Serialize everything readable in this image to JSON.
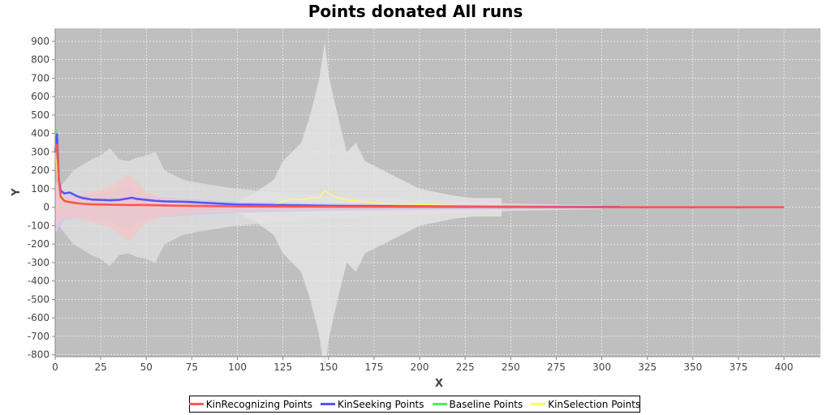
{
  "chart_data": {
    "type": "line",
    "title": "Points donated All runs",
    "xlabel": "X",
    "ylabel": "Y",
    "xlim": [
      0,
      420
    ],
    "ylim": [
      -810,
      970
    ],
    "x_ticks": [
      0,
      25,
      50,
      75,
      100,
      125,
      150,
      175,
      200,
      225,
      250,
      275,
      300,
      325,
      350,
      375,
      400
    ],
    "y_ticks": [
      -800,
      -700,
      -600,
      -500,
      -400,
      -300,
      -200,
      -100,
      0,
      100,
      200,
      300,
      400,
      500,
      600,
      700,
      800,
      900
    ],
    "grid": true,
    "legend_position": "bottom",
    "plot_background": "#bfbfbf",
    "series": [
      {
        "name": "KinRecognizing Points",
        "color": "#ff5555",
        "band_color": "#f4c6c6",
        "x": [
          0,
          1,
          2,
          3,
          5,
          8,
          12,
          16,
          20,
          25,
          30,
          35,
          40,
          45,
          50,
          60,
          70,
          80,
          90,
          100,
          120,
          150,
          200,
          250,
          300,
          350,
          400
        ],
        "y": [
          300,
          340,
          150,
          60,
          35,
          28,
          22,
          18,
          16,
          15,
          14,
          13,
          12,
          12,
          12,
          10,
          8,
          7,
          6,
          5,
          4,
          3,
          2,
          1,
          0,
          0,
          0
        ],
        "band": [
          [
            0,
            150
          ],
          [
            2,
            80
          ],
          [
            5,
            60
          ],
          [
            10,
            60
          ],
          [
            20,
            80
          ],
          [
            30,
            110
          ],
          [
            36,
            150
          ],
          [
            40,
            180
          ],
          [
            45,
            140
          ],
          [
            50,
            80
          ],
          [
            60,
            50
          ],
          [
            80,
            30
          ],
          [
            100,
            20
          ],
          [
            150,
            10
          ],
          [
            200,
            5
          ],
          [
            400,
            3
          ]
        ]
      },
      {
        "name": "KinSeeking Points",
        "color": "#5555ff",
        "band_color": "#c8c8f0",
        "x": [
          0,
          1,
          2,
          3,
          5,
          8,
          10,
          12,
          15,
          20,
          25,
          30,
          35,
          40,
          42,
          45,
          50,
          55,
          60,
          70,
          75,
          80,
          90,
          100,
          150,
          200,
          250,
          300,
          310
        ],
        "y": [
          300,
          395,
          150,
          90,
          75,
          80,
          70,
          60,
          50,
          42,
          40,
          38,
          40,
          48,
          52,
          45,
          40,
          35,
          32,
          30,
          28,
          25,
          20,
          15,
          8,
          5,
          3,
          2,
          2
        ],
        "band": [
          [
            0,
            150
          ],
          [
            5,
            70
          ],
          [
            15,
            60
          ],
          [
            30,
            80
          ],
          [
            40,
            120
          ],
          [
            50,
            60
          ],
          [
            80,
            40
          ],
          [
            100,
            30
          ],
          [
            150,
            20
          ],
          [
            200,
            15
          ],
          [
            250,
            10
          ],
          [
            310,
            5
          ]
        ]
      },
      {
        "name": "Baseline Points",
        "color": "#55ee55",
        "band_color": "#e2e2e2",
        "x": [
          0,
          1,
          2,
          3,
          5,
          10,
          20,
          30,
          50,
          75,
          100,
          150,
          200,
          250,
          300
        ],
        "y": [
          300,
          420,
          120,
          50,
          30,
          20,
          15,
          12,
          10,
          8,
          6,
          4,
          3,
          2,
          1
        ],
        "band": [
          [
            0,
            150
          ],
          [
            2,
            100
          ],
          [
            10,
            200
          ],
          [
            20,
            260
          ],
          [
            25,
            280
          ],
          [
            30,
            320
          ],
          [
            35,
            260
          ],
          [
            40,
            250
          ],
          [
            45,
            270
          ],
          [
            50,
            280
          ],
          [
            55,
            300
          ],
          [
            60,
            200
          ],
          [
            70,
            150
          ],
          [
            80,
            130
          ],
          [
            100,
            100
          ],
          [
            150,
            60
          ],
          [
            200,
            40
          ],
          [
            250,
            20
          ],
          [
            300,
            10
          ]
        ]
      },
      {
        "name": "KinSelection Points",
        "color": "#ffff55",
        "band_color": "#e8e8e8",
        "x": [
          0,
          2,
          5,
          10,
          30,
          60,
          90,
          110,
          120,
          125,
          130,
          135,
          140,
          145,
          148,
          150,
          155,
          160,
          170,
          180,
          200,
          220,
          245
        ],
        "y": [
          300,
          100,
          40,
          25,
          15,
          10,
          8,
          10,
          15,
          30,
          45,
          40,
          50,
          55,
          90,
          75,
          50,
          40,
          30,
          20,
          15,
          10,
          8
        ],
        "band": [
          [
            0,
            50
          ],
          [
            50,
            30
          ],
          [
            100,
            30
          ],
          [
            110,
            80
          ],
          [
            120,
            150
          ],
          [
            125,
            250
          ],
          [
            130,
            300
          ],
          [
            135,
            350
          ],
          [
            140,
            500
          ],
          [
            145,
            700
          ],
          [
            148,
            900
          ],
          [
            150,
            720
          ],
          [
            155,
            500
          ],
          [
            160,
            300
          ],
          [
            165,
            350
          ],
          [
            170,
            250
          ],
          [
            180,
            200
          ],
          [
            190,
            150
          ],
          [
            200,
            100
          ],
          [
            210,
            80
          ],
          [
            220,
            60
          ],
          [
            230,
            50
          ],
          [
            245,
            50
          ]
        ]
      }
    ]
  }
}
